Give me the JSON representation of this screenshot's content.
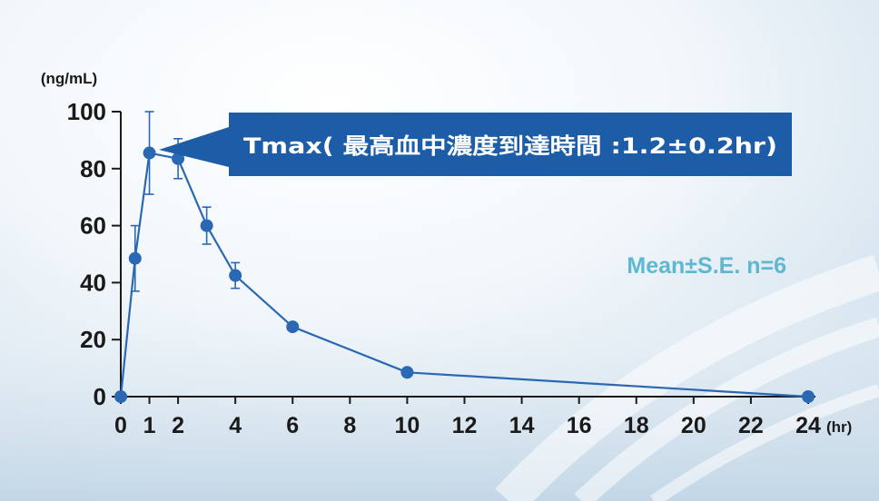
{
  "chart_data": {
    "type": "line",
    "title": "",
    "xlabel": "",
    "ylabel": "",
    "y_unit": "(ng/mL)",
    "x_unit": "(hr)",
    "xlim": [
      0,
      24
    ],
    "ylim": [
      0,
      100
    ],
    "x_ticks": [
      0,
      1,
      2,
      4,
      6,
      8,
      10,
      12,
      14,
      16,
      18,
      20,
      22,
      24
    ],
    "y_ticks": [
      0,
      20,
      40,
      60,
      80,
      100
    ],
    "grid": false,
    "series": [
      {
        "x": [
          0,
          0.5,
          1,
          2,
          3,
          4,
          6,
          10,
          24
        ],
        "y": [
          0,
          48.5,
          85.5,
          83.5,
          60,
          42.5,
          24.5,
          8.5,
          0
        ],
        "error": [
          0,
          11.5,
          14.5,
          7,
          6.5,
          4.5,
          0,
          0,
          0
        ]
      }
    ],
    "annotations": {
      "tmax": "Tmax( 最高血中濃度到達時間 :1.2±0.2hr)",
      "stats": "Mean±S.E. n=6"
    },
    "colors": {
      "line": "#2a68b4",
      "marker": "#2a68b4",
      "tmax_box": "#1d5da8",
      "tmax_text": "#ffffff",
      "stats_text": "#5fb8d0",
      "axis": "#1a1a1a"
    }
  }
}
